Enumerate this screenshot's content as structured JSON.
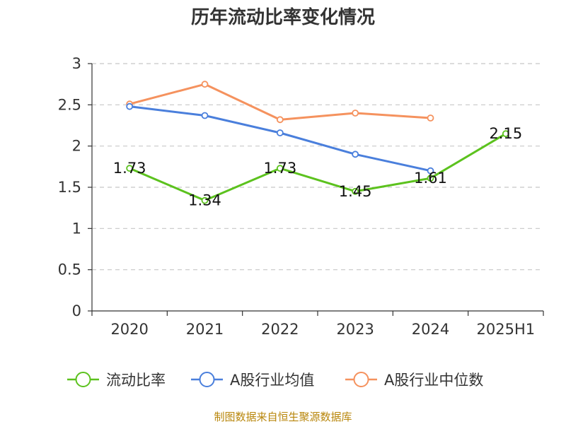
{
  "chart_data": {
    "type": "line",
    "title": "历年流动比率变化情况",
    "categories": [
      "2020",
      "2021",
      "2022",
      "2023",
      "2024",
      "2025H1"
    ],
    "ylim": [
      0,
      3
    ],
    "yticks": [
      "0",
      "0.5",
      "1",
      "1.5",
      "2",
      "2.5",
      "3"
    ],
    "ytick_values": [
      0,
      0.5,
      1,
      1.5,
      2,
      2.5,
      3
    ],
    "grid": true,
    "legend_position": "bottom",
    "series": [
      {
        "name": "流动比率",
        "color": "#5cc21e",
        "values": [
          1.73,
          1.34,
          1.73,
          1.45,
          1.61,
          2.15
        ],
        "labels": [
          "1.73",
          "1.34",
          "1.73",
          "1.45",
          "1.61",
          "2.15"
        ]
      },
      {
        "name": "A股行业均值",
        "color": "#4a7fdc",
        "values": [
          2.48,
          2.37,
          2.16,
          1.9,
          1.7,
          null
        ]
      },
      {
        "name": "A股行业中位数",
        "color": "#f5925e",
        "values": [
          2.51,
          2.75,
          2.32,
          2.4,
          2.34,
          null
        ]
      }
    ],
    "source": "制图数据来自恒生聚源数据库"
  }
}
